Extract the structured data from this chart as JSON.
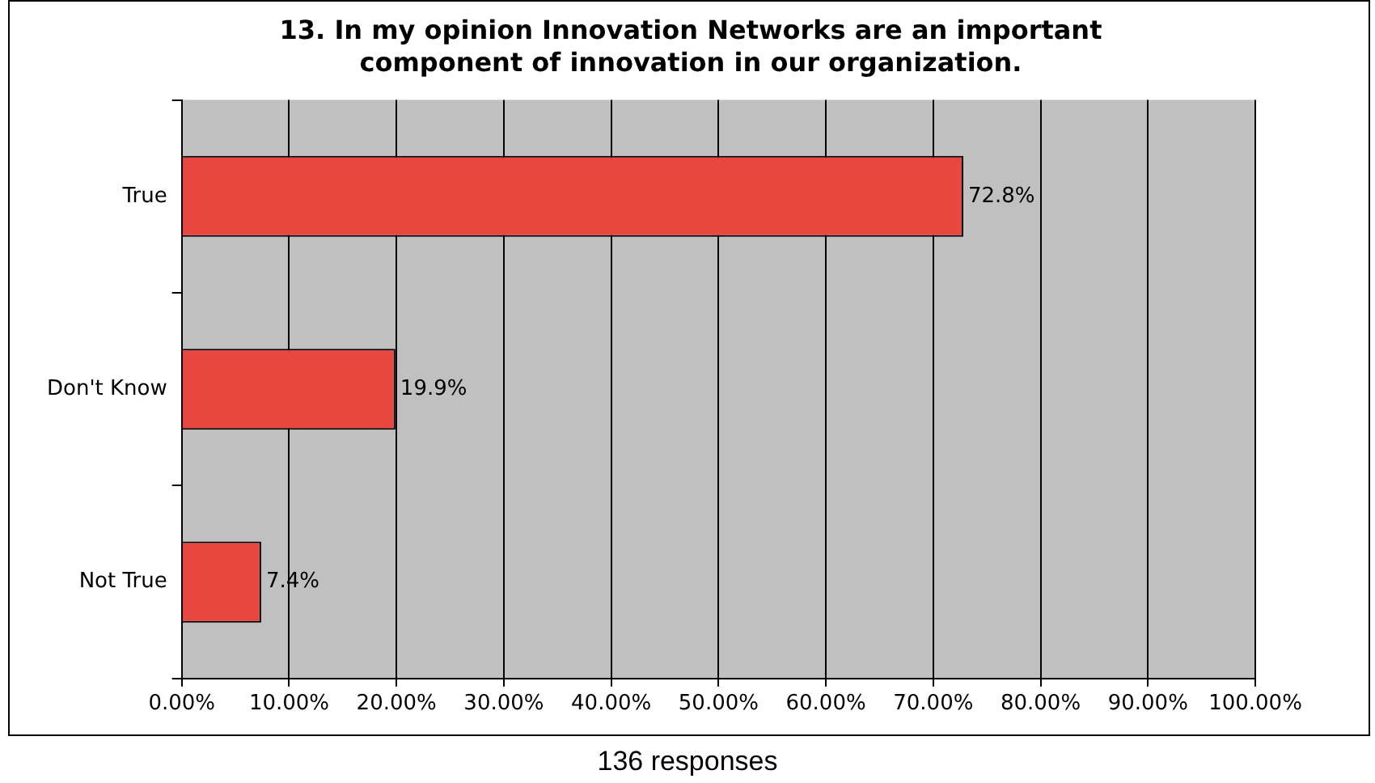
{
  "chart_data": {
    "type": "bar",
    "orientation": "horizontal",
    "title": "13.  In my opinion Innovation Networks are an important component of innovation in our organization.",
    "categories": [
      "True",
      "Don't Know",
      "Not True"
    ],
    "values": [
      72.8,
      19.9,
      7.4
    ],
    "value_labels": [
      "72.8%",
      "19.9%",
      "7.4%"
    ],
    "color": "#e8473f",
    "xlim": [
      0,
      100
    ],
    "xticks": [
      {
        "value": 0,
        "label": "0.00%"
      },
      {
        "value": 10,
        "label": "10.00%"
      },
      {
        "value": 20,
        "label": "20.00%"
      },
      {
        "value": 30,
        "label": "30.00%"
      },
      {
        "value": 40,
        "label": "40.00%"
      },
      {
        "value": 50,
        "label": "50.00%"
      },
      {
        "value": 60,
        "label": "60.00%"
      },
      {
        "value": 70,
        "label": "70.00%"
      },
      {
        "value": 80,
        "label": "80.00%"
      },
      {
        "value": 90,
        "label": "90.00%"
      },
      {
        "value": 100,
        "label": "100.00%"
      }
    ],
    "grid": "x",
    "annotations": [
      "136 responses"
    ]
  }
}
